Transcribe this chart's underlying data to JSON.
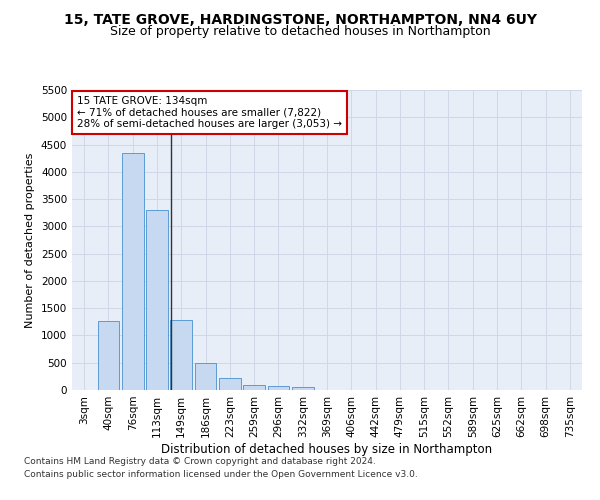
{
  "title1": "15, TATE GROVE, HARDINGSTONE, NORTHAMPTON, NN4 6UY",
  "title2": "Size of property relative to detached houses in Northampton",
  "xlabel": "Distribution of detached houses by size in Northampton",
  "ylabel": "Number of detached properties",
  "categories": [
    "3sqm",
    "40sqm",
    "76sqm",
    "113sqm",
    "149sqm",
    "186sqm",
    "223sqm",
    "259sqm",
    "296sqm",
    "332sqm",
    "369sqm",
    "406sqm",
    "442sqm",
    "479sqm",
    "515sqm",
    "552sqm",
    "589sqm",
    "625sqm",
    "662sqm",
    "698sqm",
    "735sqm"
  ],
  "bar_heights": [
    0,
    1270,
    4350,
    3300,
    1280,
    490,
    215,
    90,
    75,
    55,
    0,
    0,
    0,
    0,
    0,
    0,
    0,
    0,
    0,
    0,
    0
  ],
  "bar_color": "#c6d9f0",
  "bar_edge_color": "#5b9bd5",
  "annotation_text": "15 TATE GROVE: 134sqm\n← 71% of detached houses are smaller (7,822)\n28% of semi-detached houses are larger (3,053) →",
  "annotation_box_color": "#ffffff",
  "annotation_box_edge": "#cc0000",
  "ylim": [
    0,
    5500
  ],
  "yticks": [
    0,
    500,
    1000,
    1500,
    2000,
    2500,
    3000,
    3500,
    4000,
    4500,
    5000,
    5500
  ],
  "grid_color": "#d0d8e8",
  "background_color": "#e8eef8",
  "footer1": "Contains HM Land Registry data © Crown copyright and database right 2024.",
  "footer2": "Contains public sector information licensed under the Open Government Licence v3.0.",
  "title1_fontsize": 10,
  "title2_fontsize": 9,
  "xlabel_fontsize": 8.5,
  "ylabel_fontsize": 8,
  "tick_fontsize": 7.5,
  "annotation_fontsize": 7.5,
  "footer_fontsize": 6.5
}
